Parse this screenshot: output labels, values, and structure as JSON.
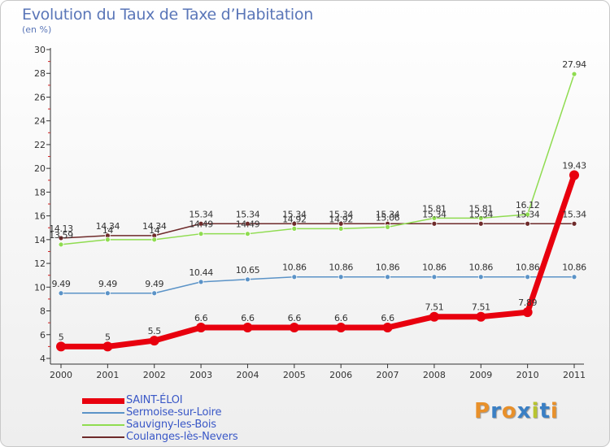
{
  "title": "Evolution du Taux de Taxe d’Habitation",
  "subtitle": "(en %)",
  "logo": {
    "text": "Proxiti",
    "colors": [
      "#e8902a",
      "#3a7fc4",
      "#e8902a",
      "#3a7fc4",
      "#b8c430",
      "#3a7fc4",
      "#e8902a"
    ]
  },
  "chart_data": {
    "type": "line",
    "title": "Evolution du Taux de Taxe d’Habitation",
    "ylabel": "(en %)",
    "ylim": [
      4,
      30
    ],
    "yticks": [
      "4",
      "6",
      "8",
      "10",
      "12",
      "14",
      "16",
      "18",
      "20",
      "22",
      "24",
      "26",
      "28",
      "30"
    ],
    "categories": [
      "2000",
      "2001",
      "2002",
      "2003",
      "2004",
      "2005",
      "2006",
      "2007",
      "2008",
      "2009",
      "2010",
      "2011"
    ],
    "grid": false,
    "legend": "bottom-left",
    "series": [
      {
        "name": "SAINT-ÉLOI",
        "color": "#e8000e",
        "values": [
          5,
          5,
          5.5,
          6.6,
          6.6,
          6.6,
          6.6,
          6.6,
          7.51,
          7.51,
          7.89,
          19.43
        ],
        "labels": [
          "5",
          "5",
          "5.5",
          "6.6",
          "6.6",
          "6.6",
          "6.6",
          "6.6",
          "7.51",
          "7.51",
          "7.89",
          "19.43"
        ]
      },
      {
        "name": "Sermoise-sur-Loire",
        "color": "#5b93c7",
        "values": [
          9.49,
          9.49,
          9.49,
          10.44,
          10.65,
          10.86,
          10.86,
          10.86,
          10.86,
          10.86,
          10.86,
          10.86
        ],
        "labels": [
          "9.49",
          "9.49",
          "9.49",
          "10.44",
          "10.65",
          "10.86",
          "10.86",
          "10.86",
          "10.86",
          "10.86",
          "10.86",
          "10.86"
        ]
      },
      {
        "name": "Sauvigny-les-Bois",
        "color": "#8fdc50",
        "values": [
          13.59,
          14,
          14,
          14.49,
          14.49,
          14.92,
          14.92,
          15.06,
          15.81,
          15.81,
          16.12,
          27.94
        ],
        "labels": [
          "13.59",
          "14",
          "14",
          "14.49",
          "14.49",
          "14.92",
          "14.92",
          "15.06",
          "15.81",
          "15.81",
          "16.12",
          "27.94"
        ]
      },
      {
        "name": "Coulanges-lès-Nevers",
        "color": "#6e2a2a",
        "values": [
          14.13,
          14.34,
          14.34,
          15.34,
          15.34,
          15.34,
          15.34,
          15.34,
          15.34,
          15.34,
          15.34,
          15.34
        ],
        "labels": [
          "14.13",
          "14.34",
          "14.34",
          "15.34",
          "15.34",
          "15.34",
          "15.34",
          "15.34",
          "15.34",
          "15.34",
          "15.34",
          "15.34"
        ]
      }
    ]
  }
}
